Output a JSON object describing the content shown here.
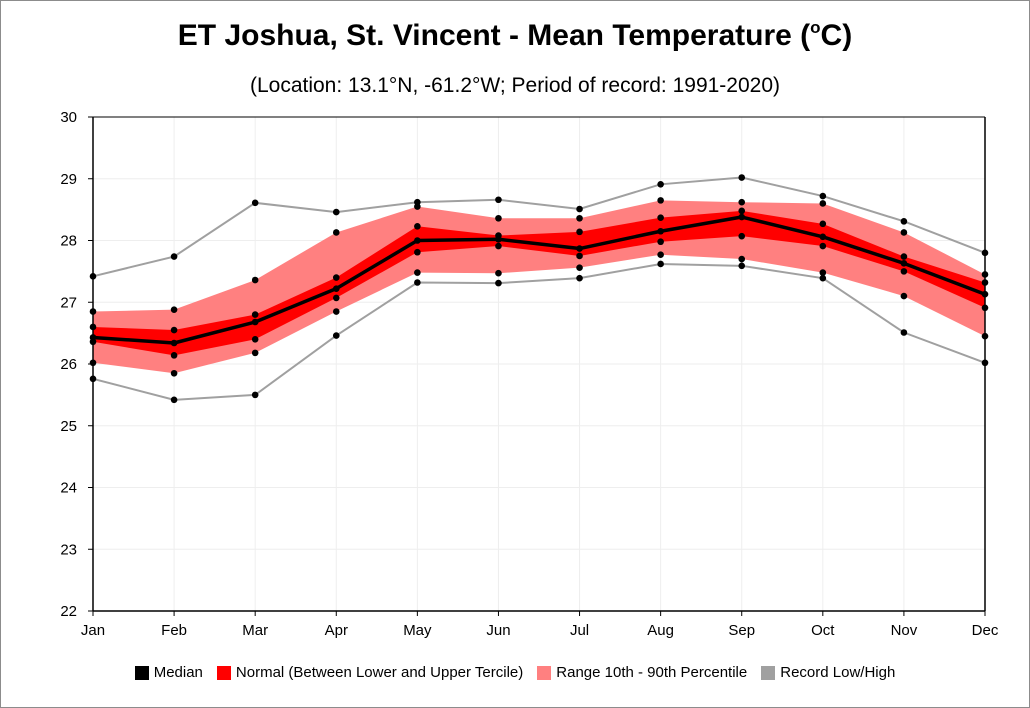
{
  "title": {
    "main": "ET Joshua, St. Vincent - Mean Temperature (",
    "sup": "o",
    "unit": "C)"
  },
  "subtitle": "(Location: 13.1°N, -61.2°W; Period of record: 1991-2020)",
  "colors": {
    "median": "#000000",
    "normal": "#ff0000",
    "range": "#ff8080",
    "record": "#a0a0a0",
    "grid": "#eeeeee"
  },
  "chart_data": {
    "type": "line",
    "categories": [
      "Jan",
      "Feb",
      "Mar",
      "Apr",
      "May",
      "Jun",
      "Jul",
      "Aug",
      "Sep",
      "Oct",
      "Nov",
      "Dec"
    ],
    "ylim": [
      22,
      30
    ],
    "yticks": [
      22,
      23,
      24,
      25,
      26,
      27,
      28,
      29,
      30
    ],
    "grid": true,
    "legend_position": "bottom",
    "series": [
      {
        "name": "Record Low/High",
        "role": "record_high",
        "values": [
          27.42,
          27.74,
          28.61,
          28.46,
          28.62,
          28.66,
          28.51,
          28.91,
          29.02,
          28.72,
          28.31,
          27.8
        ]
      },
      {
        "role": "p90",
        "values": [
          26.85,
          26.88,
          27.36,
          28.13,
          28.55,
          28.36,
          28.36,
          28.65,
          28.62,
          28.6,
          28.13,
          27.45
        ]
      },
      {
        "role": "upper_tercile",
        "values": [
          26.6,
          26.55,
          26.8,
          27.4,
          28.23,
          28.08,
          28.14,
          28.37,
          28.48,
          28.27,
          27.74,
          27.32
        ]
      },
      {
        "name": "Median",
        "role": "median",
        "values": [
          26.43,
          26.34,
          26.68,
          27.22,
          28.0,
          28.02,
          27.87,
          28.15,
          28.38,
          28.06,
          27.63,
          27.13
        ]
      },
      {
        "role": "lower_tercile",
        "values": [
          26.36,
          26.14,
          26.4,
          27.07,
          27.81,
          27.91,
          27.75,
          27.98,
          28.07,
          27.91,
          27.5,
          26.91
        ]
      },
      {
        "role": "p10",
        "values": [
          26.02,
          25.85,
          26.18,
          26.85,
          27.48,
          27.47,
          27.56,
          27.77,
          27.7,
          27.48,
          27.1,
          26.45
        ]
      },
      {
        "role": "record_low",
        "values": [
          25.76,
          25.42,
          25.5,
          26.46,
          27.32,
          27.31,
          27.39,
          27.62,
          27.59,
          27.39,
          26.51,
          26.02
        ]
      }
    ],
    "legend": [
      {
        "label": "Median",
        "color": "#000000"
      },
      {
        "label": "Normal (Between Lower and Upper Tercile)",
        "color": "#ff0000"
      },
      {
        "label": "Range 10th - 90th Percentile",
        "color": "#ff8080"
      },
      {
        "label": "Record Low/High",
        "color": "#a0a0a0"
      }
    ]
  }
}
